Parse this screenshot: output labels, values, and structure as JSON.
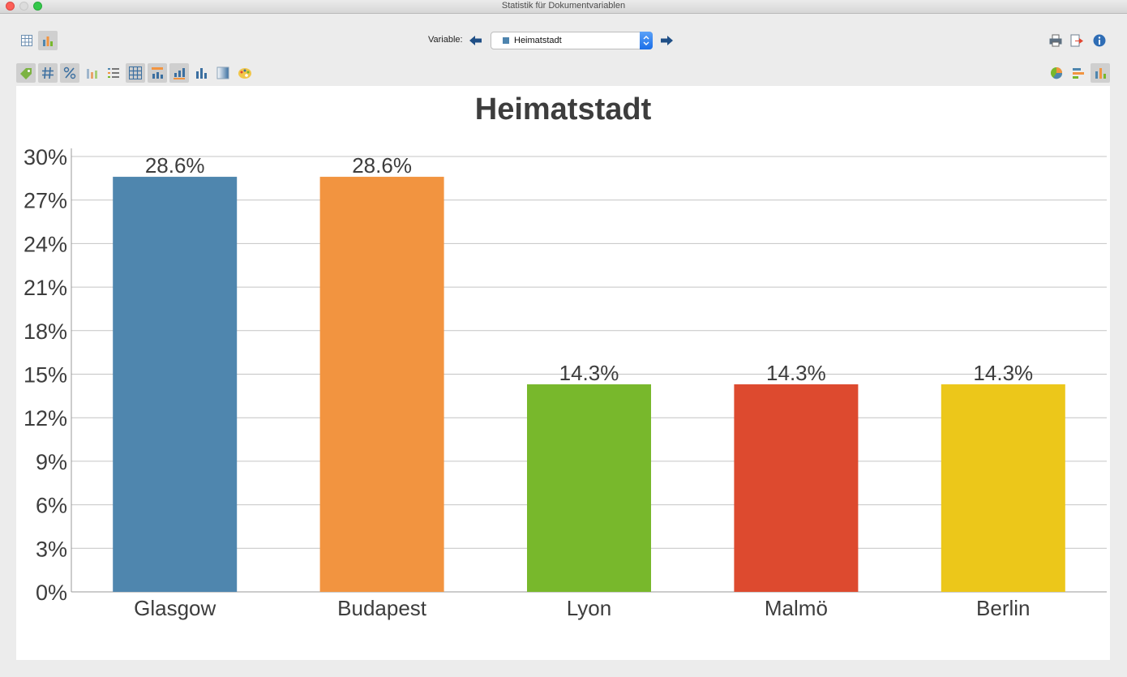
{
  "window": {
    "title": "Statistik für Dokumentvariablen"
  },
  "toolbar": {
    "variable_label": "Variable:",
    "selected_variable": "Heimatstadt",
    "selected_color": "#4e84ae"
  },
  "chart_data": {
    "type": "bar",
    "title": "Heimatstadt",
    "categories": [
      "Glasgow",
      "Budapest",
      "Lyon",
      "Malmö",
      "Berlin"
    ],
    "values": [
      28.6,
      28.6,
      14.3,
      14.3,
      14.3
    ],
    "value_labels": [
      "28.6%",
      "28.6%",
      "14.3%",
      "14.3%",
      "14.3%"
    ],
    "colors": [
      "#4f86ae",
      "#f29440",
      "#78b82c",
      "#dd4a2f",
      "#ecc71a"
    ],
    "yticks": [
      "0%",
      "3%",
      "6%",
      "9%",
      "12%",
      "15%",
      "18%",
      "21%",
      "24%",
      "27%",
      "30%"
    ],
    "ylim": [
      0,
      30
    ],
    "grid": true,
    "xlabel": "",
    "ylabel": ""
  }
}
